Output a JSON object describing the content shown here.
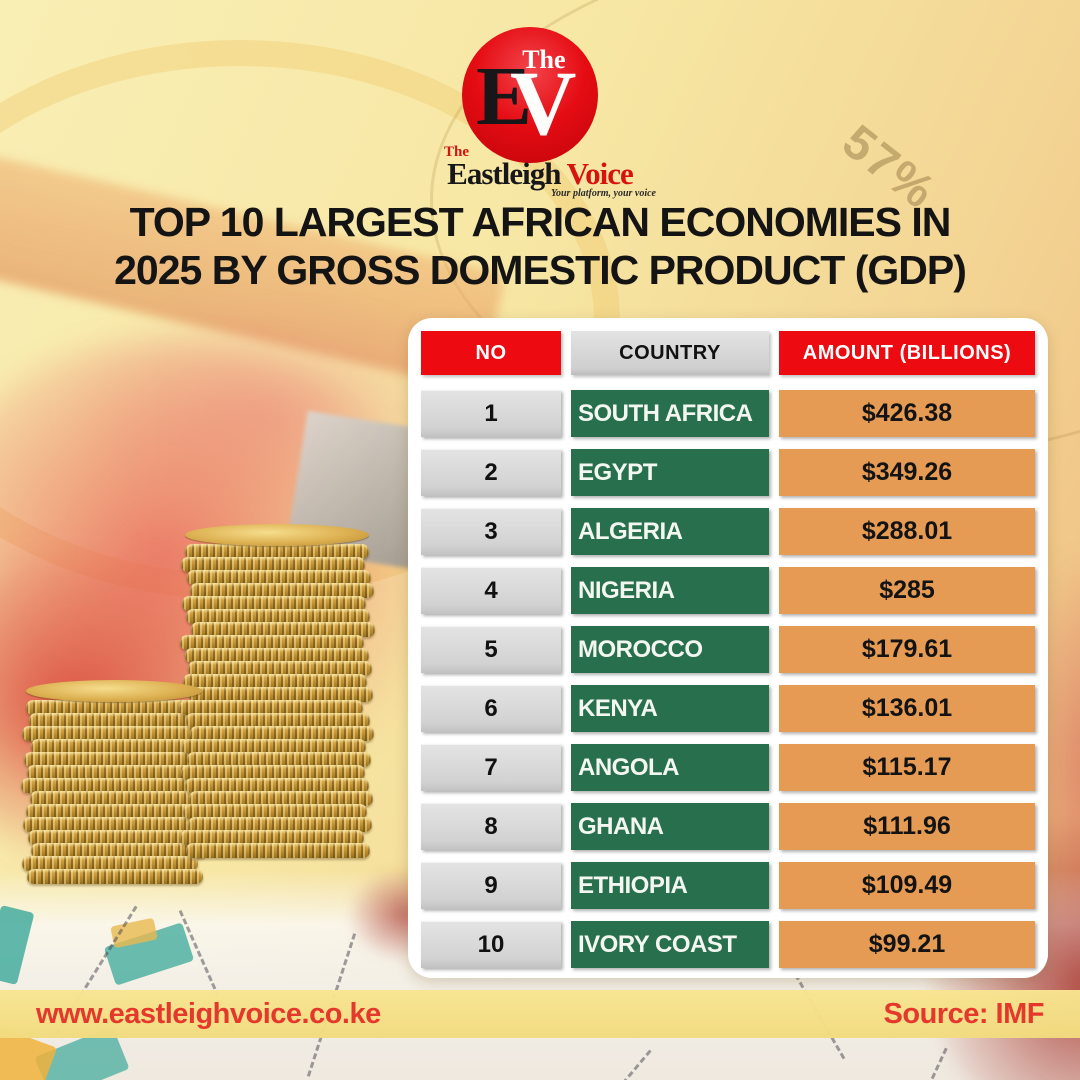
{
  "brand": {
    "badge_the": "The",
    "badge_e": "E",
    "badge_v": "V",
    "word_the": "The",
    "word_name": "Eastleigh",
    "word_voice": " Voice",
    "tagline": "Your platform, your voice"
  },
  "title": {
    "line1": "TOP 10 LARGEST AFRICAN ECONOMIES IN",
    "line2": "2025 BY GROSS DOMESTIC PRODUCT (GDP)"
  },
  "background": {
    "watermark": "57%"
  },
  "table": {
    "headers": [
      "NO",
      "COUNTRY",
      "AMOUNT (BILLIONS)"
    ],
    "rows": [
      {
        "no": "1",
        "country": "SOUTH AFRICA",
        "amount": "$426.38"
      },
      {
        "no": "2",
        "country": "EGYPT",
        "amount": "$349.26"
      },
      {
        "no": "3",
        "country": "ALGERIA",
        "amount": "$288.01"
      },
      {
        "no": "4",
        "country": "NIGERIA",
        "amount": "$285"
      },
      {
        "no": "5",
        "country": "MOROCCO",
        "amount": "$179.61"
      },
      {
        "no": "6",
        "country": "KENYA",
        "amount": "$136.01"
      },
      {
        "no": "7",
        "country": "ANGOLA",
        "amount": "$115.17"
      },
      {
        "no": "8",
        "country": "GHANA",
        "amount": "$111.96"
      },
      {
        "no": "9",
        "country": "ETHIOPIA",
        "amount": "$109.49"
      },
      {
        "no": "10",
        "country": "IVORY COAST",
        "amount": "$99.21"
      }
    ]
  },
  "footer": {
    "website": "www.eastleighvoice.co.ke",
    "source": "Source: IMF"
  },
  "colors": {
    "header_red": "#ee0a11",
    "cell_gray": "#d2d2d2",
    "cell_green": "#28704d",
    "cell_orange": "#e69b55",
    "footer_yellow": "#f5df8a",
    "footer_text_red": "#e5382c",
    "background_yellow": "#f7e7a4"
  },
  "chart_data": {
    "type": "table",
    "title": "TOP 10 LARGEST AFRICAN ECONOMIES IN 2025 BY GROSS DOMESTIC PRODUCT (GDP)",
    "columns": [
      "NO",
      "COUNTRY",
      "AMOUNT (BILLIONS)"
    ],
    "rows": [
      [
        1,
        "SOUTH AFRICA",
        426.38
      ],
      [
        2,
        "EGYPT",
        349.26
      ],
      [
        3,
        "ALGERIA",
        288.01
      ],
      [
        4,
        "NIGERIA",
        285
      ],
      [
        5,
        "MOROCCO",
        179.61
      ],
      [
        6,
        "KENYA",
        136.01
      ],
      [
        7,
        "ANGOLA",
        115.17
      ],
      [
        8,
        "GHANA",
        111.96
      ],
      [
        9,
        "ETHIOPIA",
        109.49
      ],
      [
        10,
        "IVORY COAST",
        99.21
      ]
    ],
    "units": "USD billions",
    "source": "IMF"
  }
}
